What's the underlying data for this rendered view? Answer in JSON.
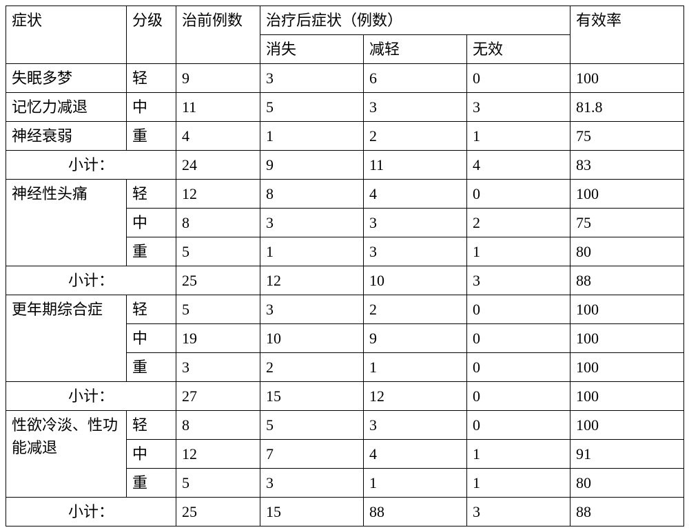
{
  "headers": {
    "symptom": "症状",
    "level": "分级",
    "before": "治前例数",
    "after_group": "治疗后症状（例数）",
    "gone": "消失",
    "less": "减轻",
    "none": "无效",
    "rate": "有效率"
  },
  "subtotal_label": "小计：",
  "groups": [
    {
      "rows": [
        {
          "symptom": "失眠多梦",
          "level": "轻",
          "before": "9",
          "gone": "3",
          "less": "6",
          "none": "0",
          "rate": "100"
        },
        {
          "symptom": "记忆力减退",
          "level": "中",
          "before": "11",
          "gone": "5",
          "less": "3",
          "none": "3",
          "rate": "81.8"
        },
        {
          "symptom": "神经衰弱",
          "level": "重",
          "before": "4",
          "gone": "1",
          "less": "2",
          "none": "1",
          "rate": "75"
        }
      ],
      "subtotal": {
        "before": "24",
        "gone": "9",
        "less": "11",
        "none": "4",
        "rate": "83"
      }
    },
    {
      "symptom": "神经性头痛",
      "rows": [
        {
          "level": "轻",
          "before": "12",
          "gone": "8",
          "less": "4",
          "none": "0",
          "rate": "100"
        },
        {
          "level": "中",
          "before": "8",
          "gone": "3",
          "less": "3",
          "none": "2",
          "rate": "75"
        },
        {
          "level": "重",
          "before": "5",
          "gone": "1",
          "less": "3",
          "none": "1",
          "rate": "80"
        }
      ],
      "subtotal": {
        "before": "25",
        "gone": "12",
        "less": "10",
        "none": "3",
        "rate": "88"
      }
    },
    {
      "symptom": "更年期综合症",
      "rows": [
        {
          "level": "轻",
          "before": "5",
          "gone": "3",
          "less": "2",
          "none": "0",
          "rate": "100"
        },
        {
          "level": "中",
          "before": "19",
          "gone": "10",
          "less": "9",
          "none": "0",
          "rate": "100"
        },
        {
          "level": "重",
          "before": "3",
          "gone": "2",
          "less": "1",
          "none": "0",
          "rate": "100"
        }
      ],
      "subtotal": {
        "before": "27",
        "gone": "15",
        "less": "12",
        "none": "0",
        "rate": "100"
      }
    },
    {
      "symptom": "性欲冷淡、性功能减退",
      "rows": [
        {
          "level": "轻",
          "before": "8",
          "gone": "5",
          "less": "3",
          "none": "0",
          "rate": "100"
        },
        {
          "level": "中",
          "before": "12",
          "gone": "7",
          "less": "4",
          "none": "1",
          "rate": "91"
        },
        {
          "level": "重",
          "before": "5",
          "gone": "3",
          "less": "1",
          "none": "1",
          "rate": "80"
        }
      ],
      "subtotal": {
        "before": "25",
        "gone": "15",
        "less": "88",
        "none": "3",
        "rate": "88"
      }
    }
  ]
}
